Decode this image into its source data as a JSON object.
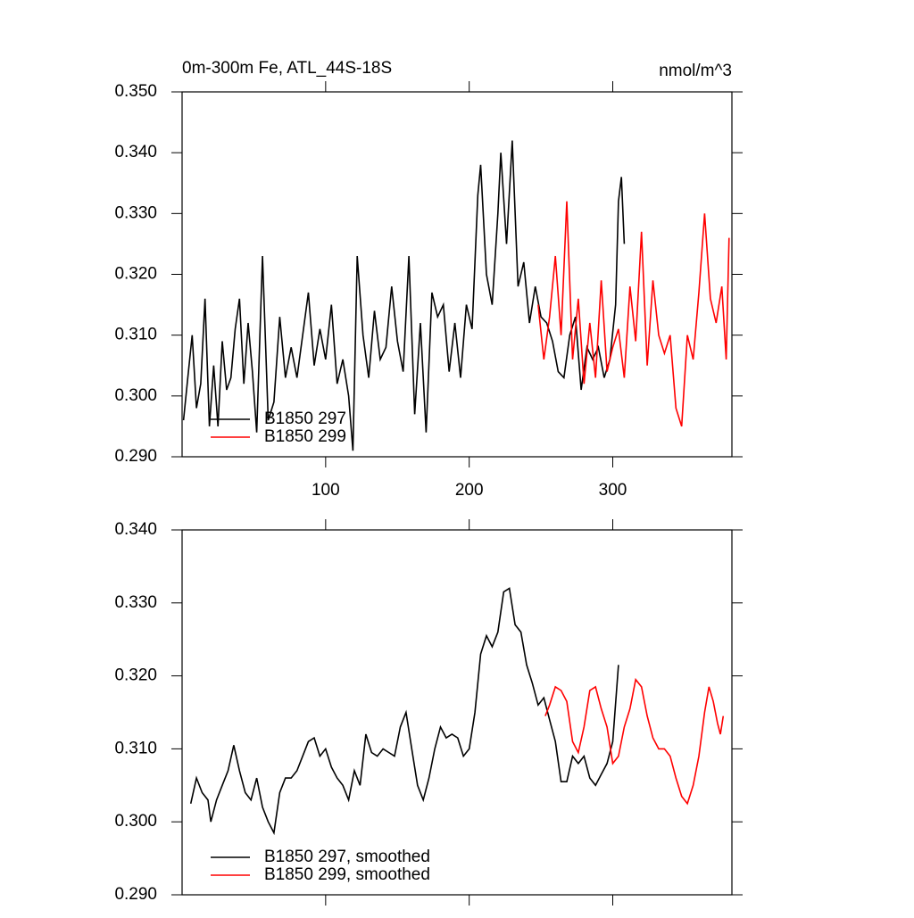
{
  "chart_data": [
    {
      "type": "line",
      "title": "0m-300m Fe, ATL_44S-18S",
      "right_title": "nmol/m^3",
      "xlim": [
        0,
        383
      ],
      "xticks": [
        100,
        200,
        300
      ],
      "ylim": [
        0.29,
        0.35
      ],
      "yticks": [
        {
          "value": 0.29,
          "label": "0.290"
        },
        {
          "value": 0.3,
          "label": "0.300"
        },
        {
          "value": 0.31,
          "label": "0.310"
        },
        {
          "value": 0.32,
          "label": "0.320"
        },
        {
          "value": 0.33,
          "label": "0.330"
        },
        {
          "value": 0.34,
          "label": "0.340"
        },
        {
          "value": 0.35,
          "label": "0.350"
        }
      ],
      "legend": "lower-left",
      "series": [
        {
          "name": "B1850 297",
          "color": "#000000",
          "x": [
            1,
            4,
            7,
            10,
            13,
            16,
            19,
            22,
            25,
            28,
            31,
            34,
            37,
            40,
            43,
            46,
            49,
            52,
            56,
            60,
            64,
            68,
            72,
            76,
            80,
            84,
            88,
            92,
            96,
            100,
            104,
            108,
            112,
            116,
            119,
            122,
            126,
            130,
            134,
            138,
            142,
            146,
            150,
            154,
            158,
            162,
            166,
            170,
            174,
            178,
            182,
            186,
            190,
            194,
            198,
            202,
            206,
            208,
            212,
            216,
            220,
            222,
            226,
            230,
            234,
            238,
            242,
            246,
            250,
            254,
            258,
            262,
            266,
            270,
            274,
            278,
            282,
            286,
            290,
            294,
            298,
            302,
            304,
            306,
            308
          ],
          "values": [
            0.296,
            0.303,
            0.31,
            0.298,
            0.302,
            0.316,
            0.295,
            0.305,
            0.295,
            0.309,
            0.301,
            0.303,
            0.311,
            0.316,
            0.302,
            0.312,
            0.304,
            0.294,
            0.323,
            0.296,
            0.299,
            0.313,
            0.303,
            0.308,
            0.303,
            0.31,
            0.317,
            0.305,
            0.311,
            0.306,
            0.315,
            0.302,
            0.306,
            0.3,
            0.291,
            0.323,
            0.31,
            0.303,
            0.314,
            0.306,
            0.308,
            0.318,
            0.309,
            0.304,
            0.323,
            0.297,
            0.312,
            0.294,
            0.317,
            0.313,
            0.315,
            0.304,
            0.312,
            0.303,
            0.315,
            0.311,
            0.333,
            0.338,
            0.32,
            0.315,
            0.33,
            0.34,
            0.325,
            0.342,
            0.318,
            0.322,
            0.312,
            0.318,
            0.313,
            0.312,
            0.309,
            0.304,
            0.303,
            0.31,
            0.313,
            0.301,
            0.308,
            0.306,
            0.308,
            0.303,
            0.306,
            0.315,
            0.332,
            0.336,
            0.325
          ]
        },
        {
          "name": "B1850 299",
          "color": "#ff0000",
          "x": [
            248,
            252,
            256,
            260,
            264,
            268,
            272,
            276,
            280,
            284,
            288,
            292,
            296,
            300,
            304,
            308,
            312,
            316,
            320,
            324,
            328,
            332,
            336,
            340,
            344,
            348,
            352,
            356,
            360,
            364,
            368,
            372,
            376,
            379,
            381
          ],
          "values": [
            0.315,
            0.306,
            0.313,
            0.323,
            0.31,
            0.332,
            0.306,
            0.316,
            0.302,
            0.312,
            0.303,
            0.319,
            0.304,
            0.308,
            0.311,
            0.303,
            0.318,
            0.309,
            0.327,
            0.305,
            0.319,
            0.31,
            0.307,
            0.31,
            0.298,
            0.295,
            0.31,
            0.306,
            0.317,
            0.33,
            0.316,
            0.312,
            0.318,
            0.306,
            0.326
          ]
        }
      ]
    },
    {
      "type": "line",
      "xlim": [
        0,
        383
      ],
      "ylim": [
        0.29,
        0.34
      ],
      "yticks": [
        {
          "value": 0.29,
          "label": "0.290"
        },
        {
          "value": 0.3,
          "label": "0.300"
        },
        {
          "value": 0.31,
          "label": "0.310"
        },
        {
          "value": 0.32,
          "label": "0.320"
        },
        {
          "value": 0.33,
          "label": "0.330"
        },
        {
          "value": 0.34,
          "label": "0.340"
        }
      ],
      "legend": "lower-left",
      "series": [
        {
          "name": "B1850 297, smoothed",
          "color": "#000000",
          "x": [
            6,
            10,
            14,
            18,
            20,
            24,
            28,
            32,
            36,
            40,
            44,
            48,
            52,
            56,
            60,
            64,
            68,
            72,
            76,
            80,
            84,
            88,
            92,
            96,
            100,
            104,
            108,
            112,
            116,
            120,
            124,
            128,
            132,
            136,
            140,
            144,
            148,
            152,
            156,
            160,
            164,
            168,
            172,
            176,
            180,
            184,
            188,
            192,
            196,
            200,
            204,
            208,
            212,
            216,
            220,
            224,
            228,
            232,
            236,
            240,
            244,
            248,
            252,
            256,
            260,
            264,
            268,
            272,
            276,
            280,
            284,
            288,
            292,
            296,
            300,
            304
          ],
          "values": [
            0.3025,
            0.306,
            0.304,
            0.303,
            0.3,
            0.303,
            0.305,
            0.307,
            0.3105,
            0.307,
            0.304,
            0.303,
            0.306,
            0.302,
            0.3,
            0.2985,
            0.304,
            0.306,
            0.306,
            0.307,
            0.309,
            0.311,
            0.3115,
            0.309,
            0.31,
            0.3075,
            0.306,
            0.305,
            0.303,
            0.307,
            0.305,
            0.312,
            0.3095,
            0.309,
            0.31,
            0.3095,
            0.309,
            0.313,
            0.315,
            0.31,
            0.305,
            0.303,
            0.306,
            0.31,
            0.313,
            0.3115,
            0.312,
            0.3115,
            0.309,
            0.31,
            0.315,
            0.323,
            0.3255,
            0.324,
            0.326,
            0.3315,
            0.332,
            0.327,
            0.326,
            0.3215,
            0.319,
            0.316,
            0.317,
            0.314,
            0.311,
            0.3055,
            0.3055,
            0.309,
            0.308,
            0.309,
            0.306,
            0.305,
            0.3065,
            0.308,
            0.311,
            0.3215
          ]
        },
        {
          "name": "B1850 299, smoothed",
          "color": "#ff0000",
          "x": [
            253,
            256,
            260,
            264,
            268,
            272,
            276,
            280,
            284,
            288,
            292,
            296,
            300,
            304,
            308,
            312,
            316,
            320,
            324,
            328,
            332,
            336,
            340,
            344,
            348,
            352,
            356,
            360,
            364,
            367,
            370,
            373,
            375,
            377
          ],
          "values": [
            0.3145,
            0.316,
            0.3185,
            0.318,
            0.3165,
            0.311,
            0.3095,
            0.313,
            0.318,
            0.3185,
            0.3155,
            0.313,
            0.308,
            0.309,
            0.313,
            0.3155,
            0.3195,
            0.3185,
            0.3145,
            0.3115,
            0.31,
            0.31,
            0.309,
            0.306,
            0.3035,
            0.3025,
            0.305,
            0.309,
            0.315,
            0.3185,
            0.3165,
            0.3135,
            0.312,
            0.3145
          ]
        }
      ]
    }
  ]
}
